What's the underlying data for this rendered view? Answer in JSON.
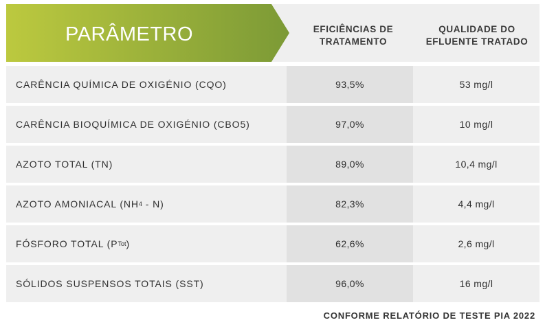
{
  "header": {
    "parameter_label": "PARÂMETRO",
    "efficiency_label_line1": "EFICIÊNCIAS DE",
    "efficiency_label_line2": "TRATAMENTO",
    "quality_label_line1": "QUALIDADE DO",
    "quality_label_line2": "EFLUENTE TRATADO"
  },
  "rows": [
    {
      "name": "CARÊNCIA QUÍMICA DE OXIGÉNIO (CQO)",
      "efficiency": "93,5%",
      "quality": "53 mg/l"
    },
    {
      "name": "CARÊNCIA BIOQUÍMICA DE OXIGÉNIO (CBO5)",
      "efficiency": "97,0%",
      "quality": "10 mg/l"
    },
    {
      "name": "AZOTO TOTAL (TN)",
      "efficiency": "89,0%",
      "quality": "10,4 mg/l"
    },
    {
      "name_prefix": "AZOTO AMONIACAL (NH",
      "name_sub": "4",
      "name_suffix": " - N)",
      "efficiency": "82,3%",
      "quality": "4,4 mg/l"
    },
    {
      "name_prefix": "FÓSFORO TOTAL (P",
      "name_sub": "Tot",
      "name_suffix": ")",
      "efficiency": "62,6%",
      "quality": "2,6 mg/l"
    },
    {
      "name": "SÓLIDOS SUSPENSOS TOTAIS (SST)",
      "efficiency": "96,0%",
      "quality": "16 mg/l"
    }
  ],
  "footer": "CONFORME RELATÓRIO DE TESTE PIA 2022",
  "colors": {
    "banner_left": "#bcc93f",
    "banner_right": "#7c9a36",
    "cell_light": "#efefef",
    "cell_dark": "#e1e1e1"
  }
}
